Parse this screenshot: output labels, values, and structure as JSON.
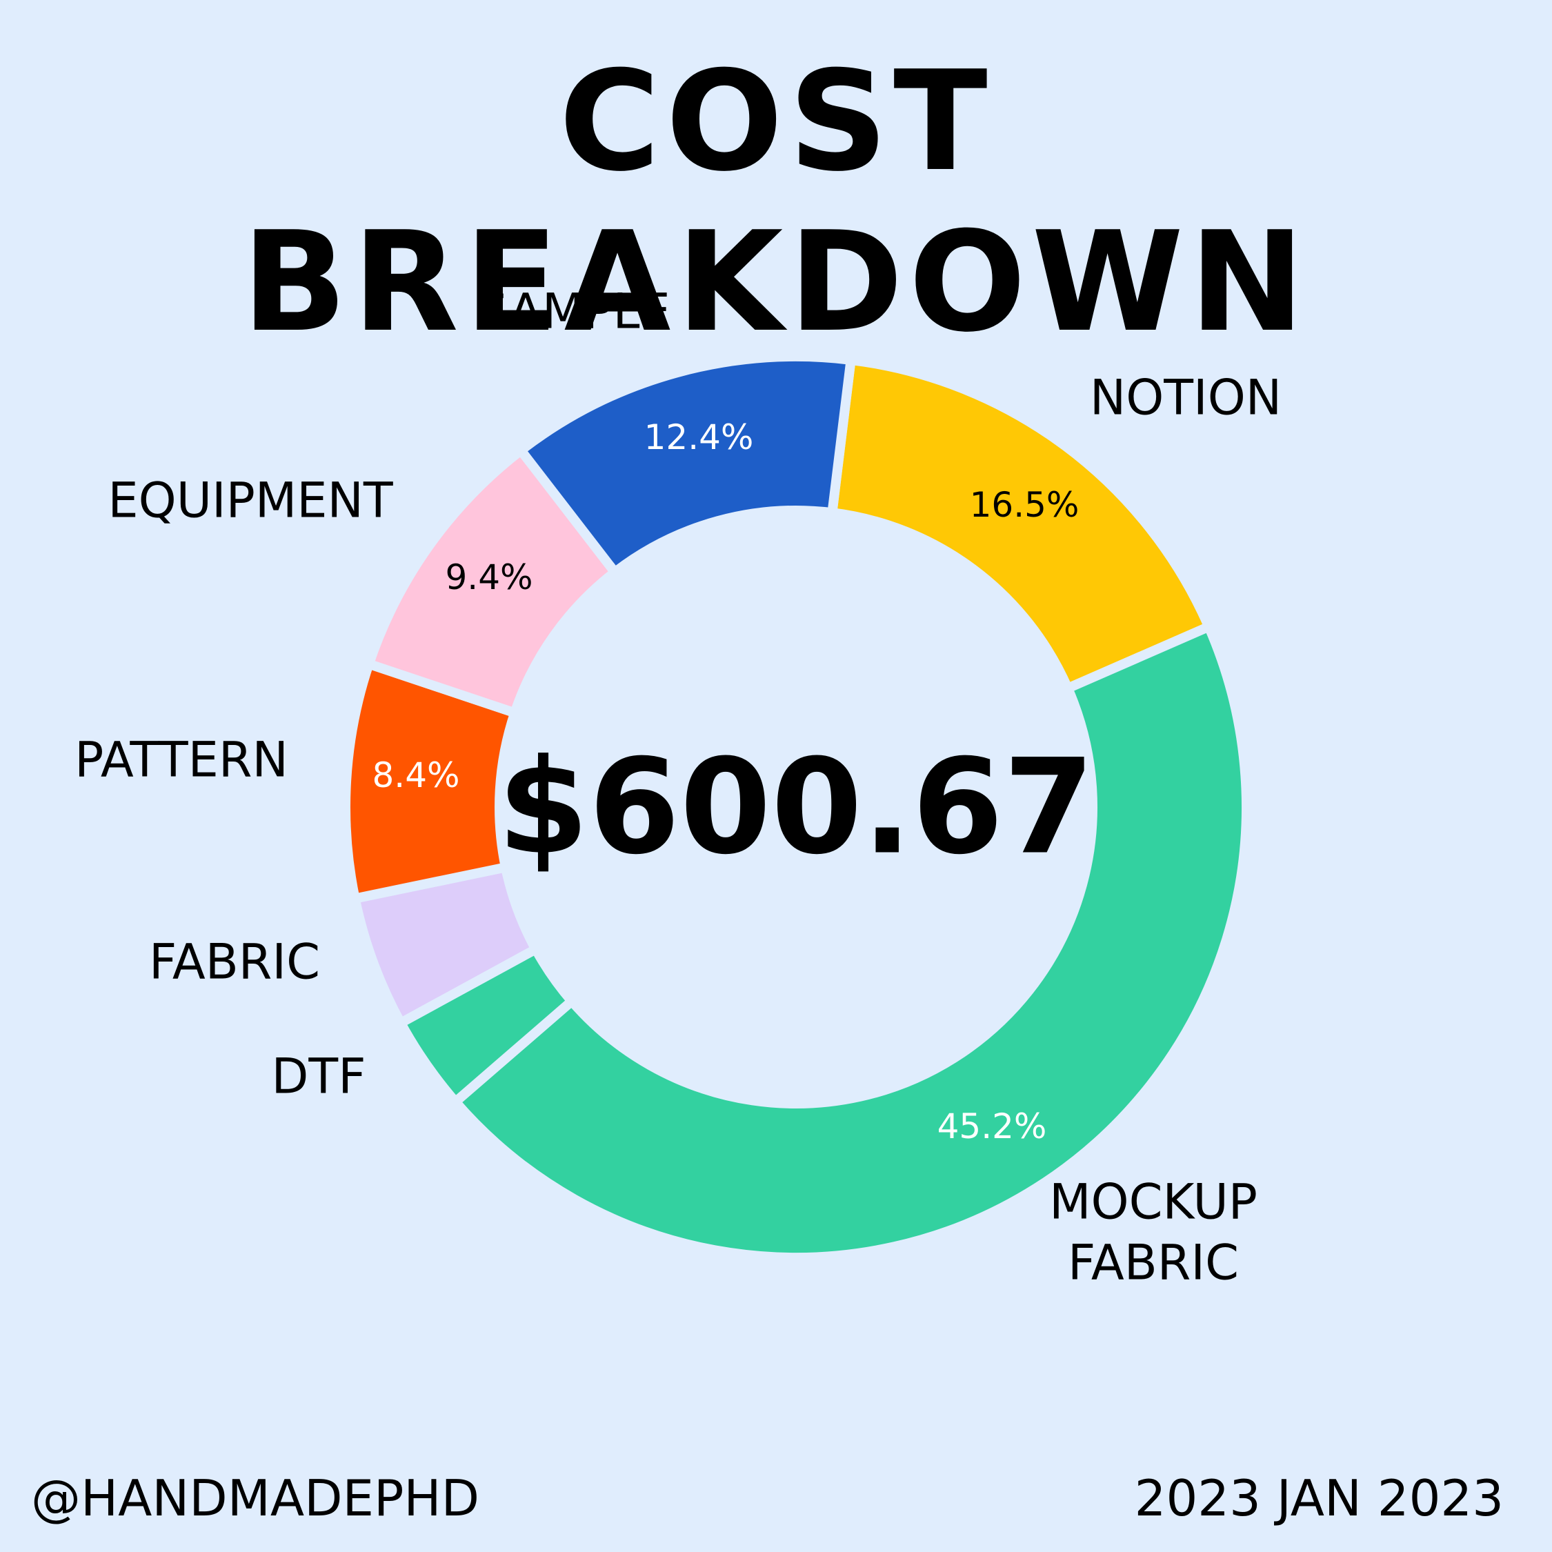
{
  "chart_data": {
    "type": "donut",
    "title": "COST BREAKDOWN",
    "center_text": "$600.67",
    "categories": [
      "NOTION",
      "MOCKUP FABRIC",
      "DTF",
      "FABRIC",
      "PATTERN",
      "EQUIPMENT",
      "SAMPLE"
    ],
    "values": [
      16.5,
      45.2,
      3.4,
      4.7,
      8.4,
      9.4,
      12.4
    ],
    "value_labels": [
      "16.5%",
      "45.2%",
      null,
      null,
      "8.4%",
      "9.4%",
      "12.4%"
    ],
    "colors": [
      "#ffc805",
      "#33d1a0",
      "#33d1a0",
      "#ddcdfa",
      "#ff5500",
      "#ffc5dc",
      "#1e5ec8"
    ],
    "footer_left": "@HANDMADEPHD",
    "footer_right": "2023 JAN 2023"
  }
}
